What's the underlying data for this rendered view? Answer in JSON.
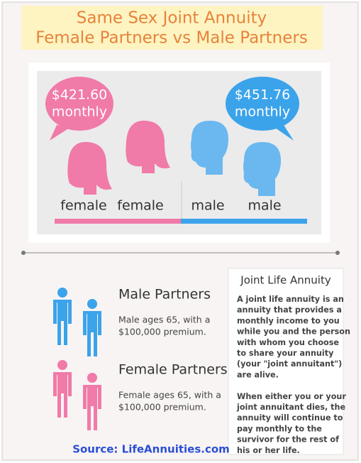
{
  "header": {
    "title_lines": [
      "Same Sex Joint Annuity",
      "Female Partners vs Male Partners"
    ]
  },
  "comparison": {
    "female_amount": [
      "$421.60",
      "monthly"
    ],
    "male_amount": [
      "$451.76",
      "monthly"
    ],
    "labels": [
      "female",
      "female",
      "male",
      "male"
    ]
  },
  "partners": [
    {
      "title": "Male Partners",
      "lines": [
        "Male ages 65, with a",
        "$100,000 premium."
      ]
    },
    {
      "title": "Female Partners",
      "lines": [
        "Female ages 65, with a",
        "$100,000 premium."
      ]
    }
  ],
  "sidebar": {
    "title": "Joint Life Annuity",
    "paragraphs": [
      [
        "A joint life annuity is an",
        "annuity that provides a",
        "monthly income to you",
        "while you and the person",
        "with whom you choose",
        "to share your annuity",
        "(your \"joint annuitant\")",
        "are alive."
      ],
      [
        "When either you or your",
        "joint annuitant dies, the",
        "annuity will continue to",
        "pay monthly to the",
        "survivor for the rest of",
        "his or her life."
      ]
    ]
  },
  "source": "Source: LifeAnnuities.com"
}
